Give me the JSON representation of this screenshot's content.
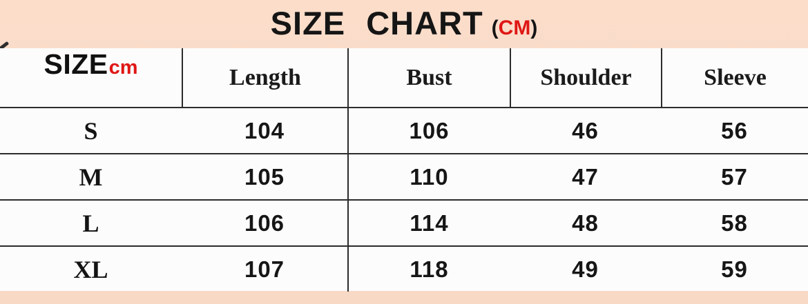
{
  "title": {
    "main": "SIZE CHART",
    "open_paren": "(",
    "unit": "CM",
    "close_paren": ")"
  },
  "header": {
    "size": "SIZE",
    "size_unit": "cm"
  },
  "chart_data": {
    "type": "table",
    "title": "SIZE CHART (CM)",
    "units": "cm",
    "columns": [
      "SIZEcm",
      "Length",
      "Bust",
      "Shoulder",
      "Sleeve"
    ],
    "rows": [
      [
        "S",
        104,
        106,
        46,
        56
      ],
      [
        "M",
        105,
        110,
        47,
        57
      ],
      [
        "L",
        106,
        114,
        48,
        58
      ],
      [
        "XL",
        107,
        118,
        49,
        59
      ]
    ]
  },
  "colors": {
    "background_peach": "#f9dbc8",
    "table_background": "#fcfcfd",
    "accent_red": "#df1715",
    "grid_line": "#2b2b2b",
    "text": "#151515"
  }
}
